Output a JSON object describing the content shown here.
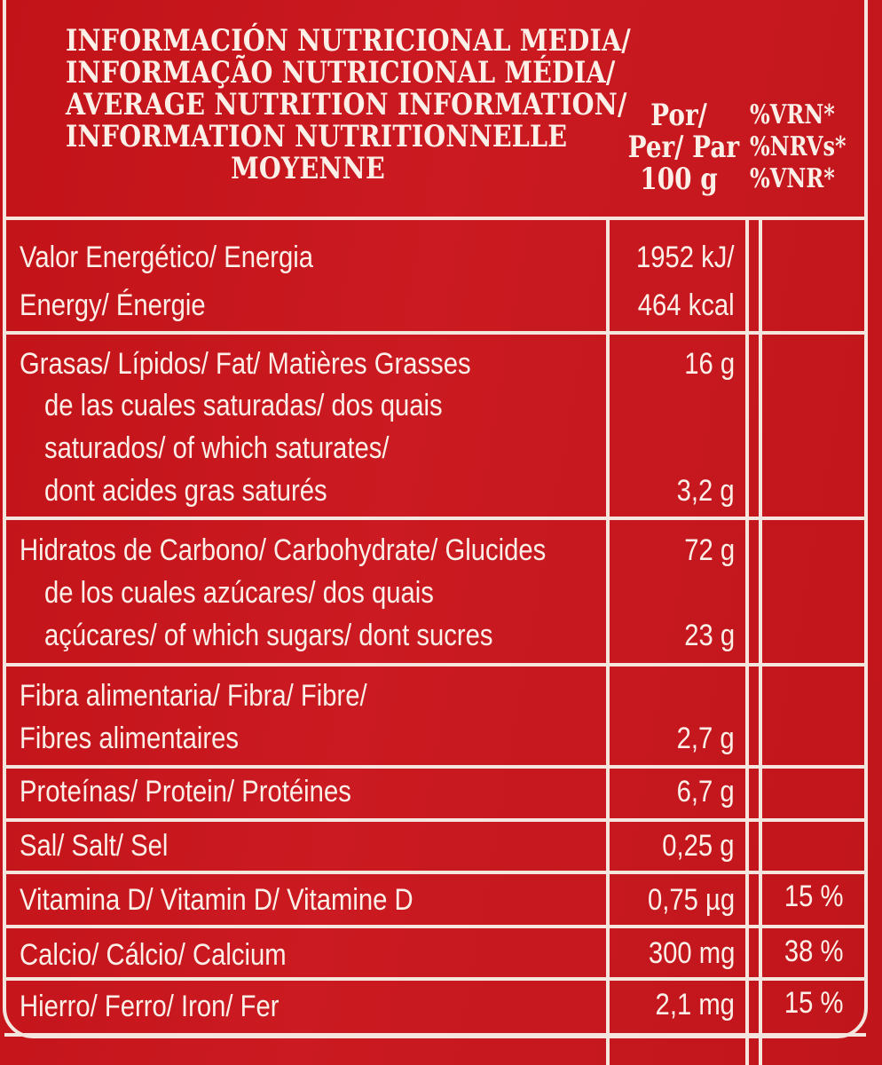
{
  "header": {
    "title_lines": [
      "INFORMACIÓN NUTRICIONAL MEDIA/",
      "INFORMAÇÃO NUTRICIONAL MÉDIA/",
      "AVERAGE NUTRITION INFORMATION/",
      "INFORMATION NUTRITIONNELLE",
      "MOYENNE"
    ],
    "per_lines": [
      "Por/",
      "Per/ Par",
      "100 g"
    ],
    "ri_lines": [
      "%VRN*",
      "%NRVs*",
      "%VNR*"
    ]
  },
  "rows": [
    {
      "label_lines": [
        "Valor Energético/ Energia",
        "Energy/ Énergie"
      ],
      "value_lines": [
        "1952 kJ/",
        "464 kcal"
      ],
      "ri": ""
    },
    {
      "label_lines": [
        "Grasas/ Lípidos/ Fat/ Matières Grasses"
      ],
      "value": "16 g",
      "ri": ""
    },
    {
      "label_lines": [
        "de las cuales saturadas/ dos quais",
        "saturados/ of which saturates/",
        "dont acides gras saturés"
      ],
      "value": "3,2 g",
      "ri": ""
    },
    {
      "label_lines": [
        "Hidratos de Carbono/ Carbohydrate/ Glucides"
      ],
      "value": "72 g",
      "ri": ""
    },
    {
      "label_lines": [
        "de los cuales azúcares/ dos quais",
        "açúcares/ of which sugars/ dont sucres"
      ],
      "value": "23 g",
      "ri": ""
    },
    {
      "label_lines": [
        "Fibra alimentaria/ Fibra/ Fibre/",
        "Fibres alimentaires"
      ],
      "value": "2,7 g",
      "ri": ""
    },
    {
      "label_lines": [
        "Proteínas/ Protein/ Protéines"
      ],
      "value": "6,7 g",
      "ri": ""
    },
    {
      "label_lines": [
        "Sal/ Salt/ Sel"
      ],
      "value": "0,25 g",
      "ri": ""
    },
    {
      "label_lines": [
        "Vitamina D/ Vitamin D/ Vitamine D"
      ],
      "value": "0,75 µg",
      "ri": "15 %"
    },
    {
      "label_lines": [
        "Calcio/ Cálcio/ Calcium"
      ],
      "value": "300 mg",
      "ri": "38 %"
    },
    {
      "label_lines": [
        "Hierro/ Ferro/ Iron/ Fer"
      ],
      "value": "2,1 mg",
      "ri": "15 %"
    }
  ]
}
